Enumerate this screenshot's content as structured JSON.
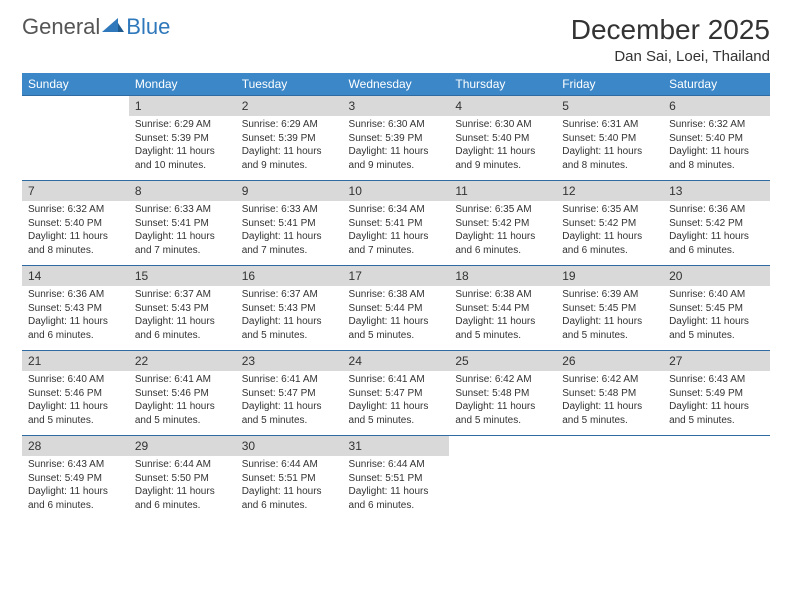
{
  "logo": {
    "text_a": "General",
    "text_b": "Blue"
  },
  "title": "December 2025",
  "location": "Dan Sai, Loei, Thailand",
  "colors": {
    "header_bg": "#3b87c8",
    "header_text": "#ffffff",
    "daynum_bg": "#d9d9d9",
    "row_border": "#2f6aa0",
    "body_text": "#333333",
    "logo_gray": "#555555",
    "logo_blue": "#2f78bb"
  },
  "fonts": {
    "title_size": 28,
    "location_size": 15,
    "dow_size": 12,
    "daynum_size": 12,
    "detail_size": 10
  },
  "dow": [
    "Sunday",
    "Monday",
    "Tuesday",
    "Wednesday",
    "Thursday",
    "Friday",
    "Saturday"
  ],
  "weeks": [
    {
      "nums": [
        "",
        "1",
        "2",
        "3",
        "4",
        "5",
        "6"
      ],
      "cells": [
        null,
        {
          "sr": "6:29 AM",
          "ss": "5:39 PM",
          "dl": "11 hours and 10 minutes."
        },
        {
          "sr": "6:29 AM",
          "ss": "5:39 PM",
          "dl": "11 hours and 9 minutes."
        },
        {
          "sr": "6:30 AM",
          "ss": "5:39 PM",
          "dl": "11 hours and 9 minutes."
        },
        {
          "sr": "6:30 AM",
          "ss": "5:40 PM",
          "dl": "11 hours and 9 minutes."
        },
        {
          "sr": "6:31 AM",
          "ss": "5:40 PM",
          "dl": "11 hours and 8 minutes."
        },
        {
          "sr": "6:32 AM",
          "ss": "5:40 PM",
          "dl": "11 hours and 8 minutes."
        }
      ]
    },
    {
      "nums": [
        "7",
        "8",
        "9",
        "10",
        "11",
        "12",
        "13"
      ],
      "cells": [
        {
          "sr": "6:32 AM",
          "ss": "5:40 PM",
          "dl": "11 hours and 8 minutes."
        },
        {
          "sr": "6:33 AM",
          "ss": "5:41 PM",
          "dl": "11 hours and 7 minutes."
        },
        {
          "sr": "6:33 AM",
          "ss": "5:41 PM",
          "dl": "11 hours and 7 minutes."
        },
        {
          "sr": "6:34 AM",
          "ss": "5:41 PM",
          "dl": "11 hours and 7 minutes."
        },
        {
          "sr": "6:35 AM",
          "ss": "5:42 PM",
          "dl": "11 hours and 6 minutes."
        },
        {
          "sr": "6:35 AM",
          "ss": "5:42 PM",
          "dl": "11 hours and 6 minutes."
        },
        {
          "sr": "6:36 AM",
          "ss": "5:42 PM",
          "dl": "11 hours and 6 minutes."
        }
      ]
    },
    {
      "nums": [
        "14",
        "15",
        "16",
        "17",
        "18",
        "19",
        "20"
      ],
      "cells": [
        {
          "sr": "6:36 AM",
          "ss": "5:43 PM",
          "dl": "11 hours and 6 minutes."
        },
        {
          "sr": "6:37 AM",
          "ss": "5:43 PM",
          "dl": "11 hours and 6 minutes."
        },
        {
          "sr": "6:37 AM",
          "ss": "5:43 PM",
          "dl": "11 hours and 5 minutes."
        },
        {
          "sr": "6:38 AM",
          "ss": "5:44 PM",
          "dl": "11 hours and 5 minutes."
        },
        {
          "sr": "6:38 AM",
          "ss": "5:44 PM",
          "dl": "11 hours and 5 minutes."
        },
        {
          "sr": "6:39 AM",
          "ss": "5:45 PM",
          "dl": "11 hours and 5 minutes."
        },
        {
          "sr": "6:40 AM",
          "ss": "5:45 PM",
          "dl": "11 hours and 5 minutes."
        }
      ]
    },
    {
      "nums": [
        "21",
        "22",
        "23",
        "24",
        "25",
        "26",
        "27"
      ],
      "cells": [
        {
          "sr": "6:40 AM",
          "ss": "5:46 PM",
          "dl": "11 hours and 5 minutes."
        },
        {
          "sr": "6:41 AM",
          "ss": "5:46 PM",
          "dl": "11 hours and 5 minutes."
        },
        {
          "sr": "6:41 AM",
          "ss": "5:47 PM",
          "dl": "11 hours and 5 minutes."
        },
        {
          "sr": "6:41 AM",
          "ss": "5:47 PM",
          "dl": "11 hours and 5 minutes."
        },
        {
          "sr": "6:42 AM",
          "ss": "5:48 PM",
          "dl": "11 hours and 5 minutes."
        },
        {
          "sr": "6:42 AM",
          "ss": "5:48 PM",
          "dl": "11 hours and 5 minutes."
        },
        {
          "sr": "6:43 AM",
          "ss": "5:49 PM",
          "dl": "11 hours and 5 minutes."
        }
      ]
    },
    {
      "nums": [
        "28",
        "29",
        "30",
        "31",
        "",
        "",
        ""
      ],
      "cells": [
        {
          "sr": "6:43 AM",
          "ss": "5:49 PM",
          "dl": "11 hours and 6 minutes."
        },
        {
          "sr": "6:44 AM",
          "ss": "5:50 PM",
          "dl": "11 hours and 6 minutes."
        },
        {
          "sr": "6:44 AM",
          "ss": "5:51 PM",
          "dl": "11 hours and 6 minutes."
        },
        {
          "sr": "6:44 AM",
          "ss": "5:51 PM",
          "dl": "11 hours and 6 minutes."
        },
        null,
        null,
        null
      ]
    }
  ],
  "labels": {
    "sunrise": "Sunrise:",
    "sunset": "Sunset:",
    "daylight": "Daylight:"
  }
}
